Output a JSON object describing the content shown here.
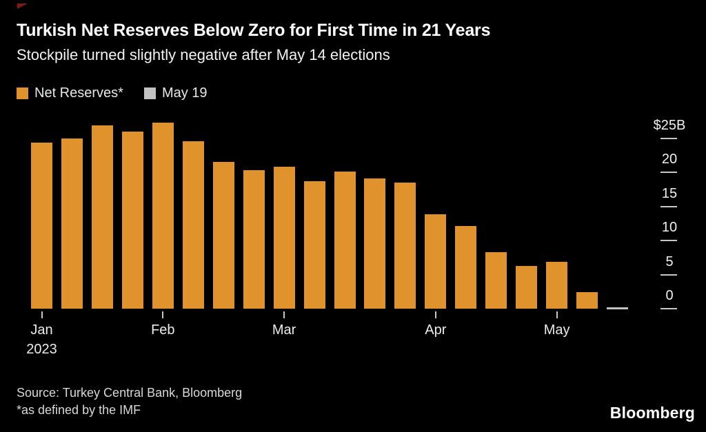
{
  "header": {
    "title": "Turkish Net Reserves Below Zero for First Time in 21 Years",
    "subtitle": "Stockpile turned slightly negative after May 14 elections"
  },
  "legend": [
    {
      "label": "Net Reserves*",
      "color": "#E0922D"
    },
    {
      "label": "May 19",
      "color": "#C2C2C2"
    }
  ],
  "chart_data": {
    "type": "bar",
    "title": "Turkish Net Reserves Below Zero for First Time in 21 Years",
    "subtitle": "Stockpile turned slightly negative after May 14 elections",
    "unit": "$B",
    "ylim": [
      -1,
      28
    ],
    "grid": false,
    "legend_position": "top-left",
    "y_axis_side": "right",
    "background_color": "#000000",
    "values": [
      24.4,
      25.0,
      26.9,
      26.0,
      27.3,
      24.6,
      21.6,
      20.3,
      20.9,
      18.7,
      20.1,
      19.1,
      18.5,
      13.9,
      12.1,
      8.3,
      6.3,
      6.9,
      2.4,
      -0.2
    ],
    "bar_series": [
      0,
      0,
      0,
      0,
      0,
      0,
      0,
      0,
      0,
      0,
      0,
      0,
      0,
      0,
      0,
      0,
      0,
      0,
      0,
      1
    ],
    "series": [
      {
        "name": "Net Reserves*",
        "color": "#E0922D"
      },
      {
        "name": "May 19",
        "color": "#C2C2C2"
      }
    ],
    "y_ticks": [
      {
        "label": "$25B",
        "value": 25
      },
      {
        "label": "20",
        "value": 20
      },
      {
        "label": "15",
        "value": 15
      },
      {
        "label": "10",
        "value": 10
      },
      {
        "label": "5",
        "value": 5
      },
      {
        "label": "0",
        "value": 0
      }
    ],
    "x_ticks": [
      {
        "label": "Jan",
        "sublabel": "2023",
        "bar_index": 0
      },
      {
        "label": "Feb",
        "bar_index": 4
      },
      {
        "label": "Mar",
        "bar_index": 8
      },
      {
        "label": "Apr",
        "bar_index": 13
      },
      {
        "label": "May",
        "bar_index": 17
      }
    ]
  },
  "footer": {
    "source": "Source: Turkey Central Bank, Bloomberg",
    "footnote": "*as defined by the IMF",
    "logo": "Bloomberg"
  }
}
